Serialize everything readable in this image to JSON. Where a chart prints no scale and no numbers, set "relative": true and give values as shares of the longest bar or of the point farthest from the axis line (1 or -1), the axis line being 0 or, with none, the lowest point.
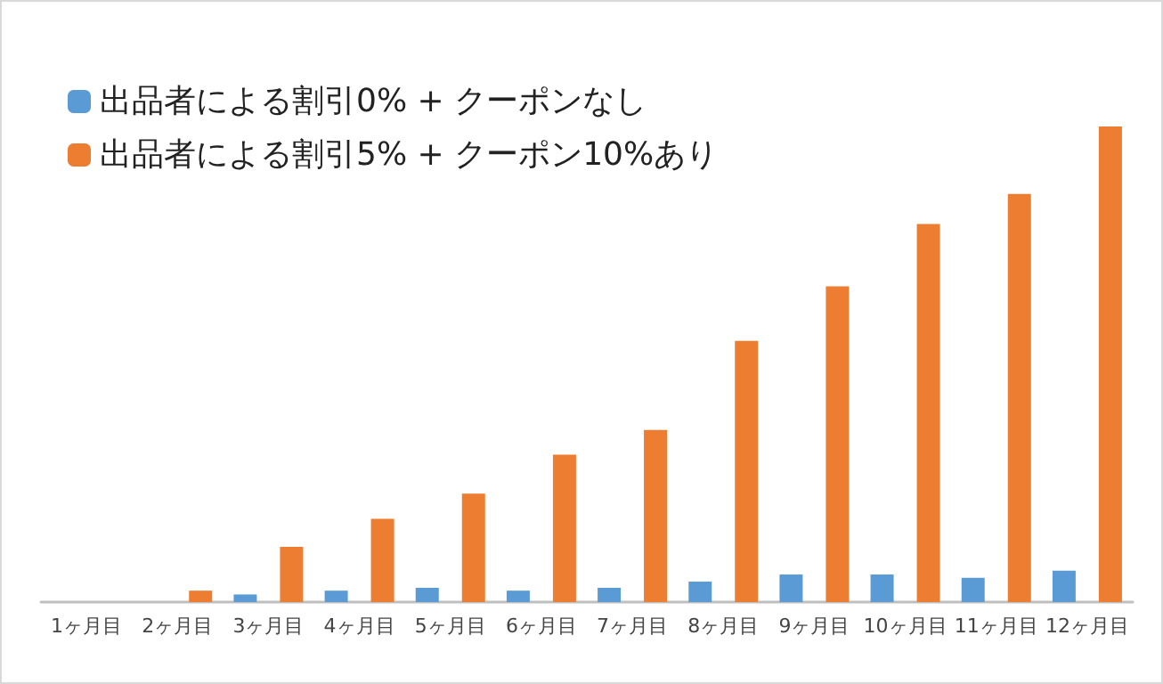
{
  "chart_data": {
    "type": "bar",
    "relative": true,
    "legend": "top left",
    "grid": false,
    "categories": [
      "1ヶ月目",
      "2ヶ月目",
      "3ヶ月目",
      "4ヶ月目",
      "5ヶ月目",
      "6ヶ月目",
      "7ヶ月目",
      "8ヶ月目",
      "9ヶ月目",
      "10ヶ月目",
      "11ヶ月目",
      "12ヶ月目"
    ],
    "series": [
      {
        "name": "出品者による割引0% + クーポンなし",
        "color": "#5b9bd5",
        "values": [
          0,
          0,
          0.016,
          0.024,
          0.03,
          0.024,
          0.03,
          0.043,
          0.058,
          0.058,
          0.051,
          0.066
        ]
      },
      {
        "name": "出品者による割引5% + クーポン10%あり",
        "color": "#ed7d31",
        "values": [
          0,
          0.024,
          0.116,
          0.175,
          0.228,
          0.31,
          0.362,
          0.549,
          0.664,
          0.795,
          0.858,
          1
        ]
      }
    ]
  }
}
